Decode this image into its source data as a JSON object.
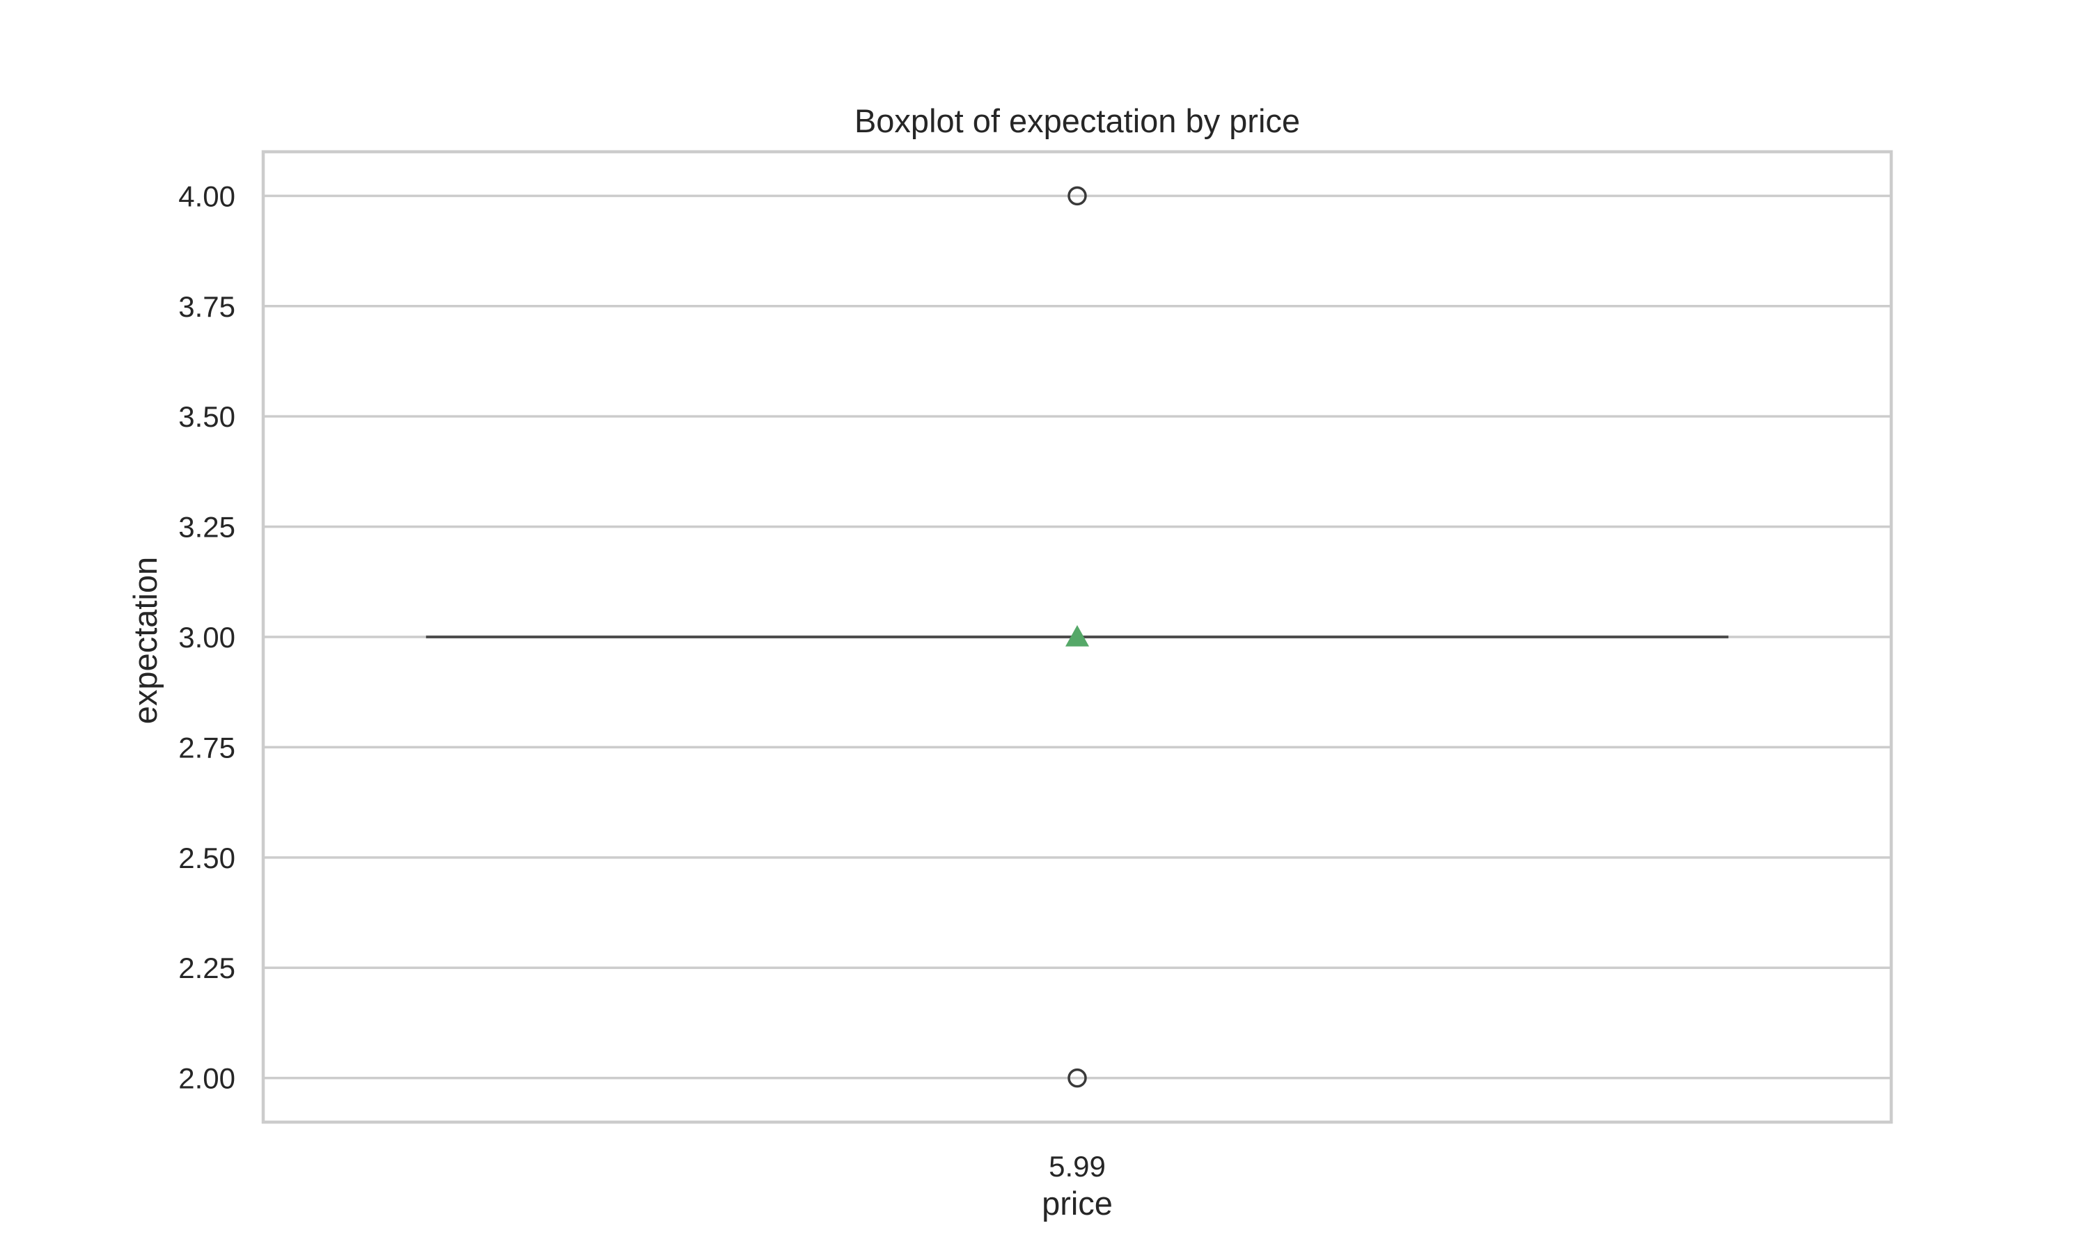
{
  "chart_data": {
    "type": "box",
    "title": "Boxplot of expectation by price",
    "xlabel": "price",
    "ylabel": "expectation",
    "categories": [
      "5.99"
    ],
    "boxes": [
      {
        "category": "5.99",
        "q1": 3.0,
        "median": 3.0,
        "q3": 3.0,
        "whisker_low": 3.0,
        "whisker_high": 3.0,
        "mean": 3.0,
        "outliers": [
          4.0,
          2.0
        ]
      }
    ],
    "yticks": [
      2.0,
      2.25,
      2.5,
      2.75,
      3.0,
      3.25,
      3.5,
      3.75,
      4.0
    ],
    "ytick_labels": [
      "2.00",
      "2.25",
      "2.50",
      "2.75",
      "3.00",
      "3.25",
      "3.50",
      "3.75",
      "4.00"
    ],
    "ylim": [
      1.9,
      4.1
    ],
    "grid": true,
    "colors": {
      "grid": "#cccccc",
      "frame": "#cccccc",
      "median": "#4d4d4d",
      "mean_marker": "#55a868",
      "outlier": "#3a3a3a",
      "text": "#262626"
    }
  }
}
